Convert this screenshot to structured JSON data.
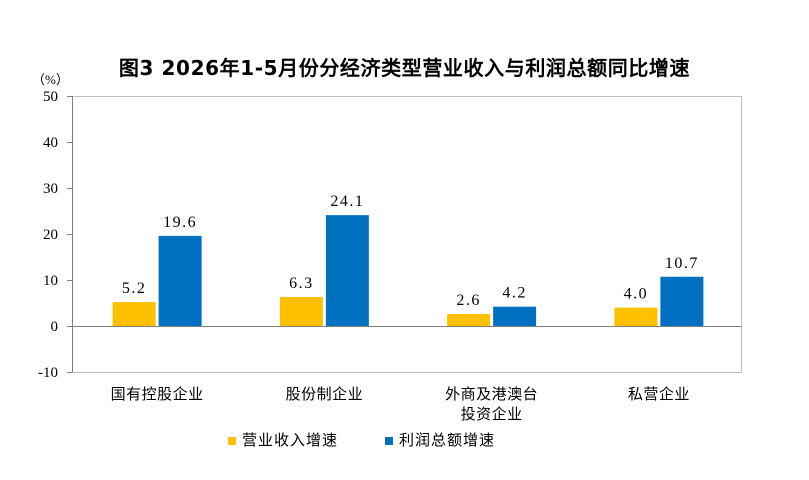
{
  "chart_data": {
    "type": "bar",
    "title": "图3 2026年1-5月份分经济类型营业收入与利润总额同比增速",
    "ylabel": "（%）",
    "ylim": [
      -10,
      50
    ],
    "yticks": [
      50,
      40,
      30,
      20,
      10,
      0,
      -10
    ],
    "categories": [
      "国有控股企业",
      "股份制企业",
      "外商及港澳台投资企业",
      "私营企业"
    ],
    "series": [
      {
        "name": "营业收入增速",
        "color": "#FFC000",
        "values": [
          5.2,
          6.3,
          2.6,
          4.0
        ],
        "data_labels": [
          "5.2",
          "6.3",
          "2.6",
          "4.0"
        ]
      },
      {
        "name": "利润总额增速",
        "color": "#0070C0",
        "values": [
          19.6,
          24.1,
          4.2,
          10.7
        ],
        "data_labels": [
          "19.6",
          "24.1",
          "4.2",
          "10.7"
        ]
      }
    ],
    "legend": "bottom",
    "grid": false
  }
}
